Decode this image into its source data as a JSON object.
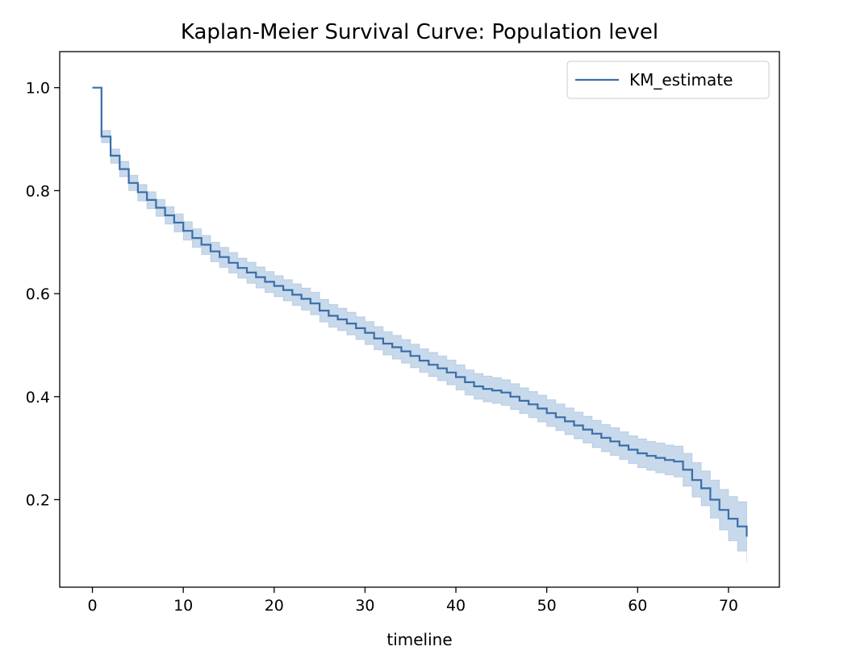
{
  "chart_data": {
    "type": "line",
    "title": "Kaplan-Meier Survival Curve: Population level",
    "xlabel": "timeline",
    "ylabel": "",
    "xlim": [
      -3.6,
      75.6
    ],
    "ylim": [
      0.03,
      1.07
    ],
    "x_ticks": [
      0,
      10,
      20,
      30,
      40,
      50,
      60,
      70
    ],
    "x_tick_labels": [
      "0",
      "10",
      "20",
      "30",
      "40",
      "50",
      "60",
      "70"
    ],
    "y_ticks": [
      0.2,
      0.4,
      0.6,
      0.8,
      1.0
    ],
    "y_tick_labels": [
      "0.2",
      "0.4",
      "0.6",
      "0.8",
      "1.0"
    ],
    "grid": false,
    "legend_position": "top-right",
    "series": [
      {
        "name": "KM_estimate",
        "color": "#3a6ea8",
        "band_color": "#a9c4e0",
        "x": [
          0,
          1,
          2,
          3,
          4,
          5,
          6,
          7,
          8,
          9,
          10,
          11,
          12,
          13,
          14,
          15,
          16,
          17,
          18,
          19,
          20,
          21,
          22,
          23,
          24,
          25,
          26,
          27,
          28,
          29,
          30,
          31,
          32,
          33,
          34,
          35,
          36,
          37,
          38,
          39,
          40,
          41,
          42,
          43,
          44,
          45,
          46,
          47,
          48,
          49,
          50,
          51,
          52,
          53,
          54,
          55,
          56,
          57,
          58,
          59,
          60,
          61,
          62,
          63,
          64,
          65,
          66,
          67,
          68,
          69,
          70,
          71,
          72
        ],
        "y": [
          1.0,
          0.905,
          0.868,
          0.842,
          0.815,
          0.797,
          0.782,
          0.767,
          0.752,
          0.738,
          0.722,
          0.708,
          0.695,
          0.682,
          0.671,
          0.66,
          0.65,
          0.641,
          0.632,
          0.623,
          0.615,
          0.607,
          0.598,
          0.59,
          0.581,
          0.567,
          0.557,
          0.55,
          0.542,
          0.533,
          0.524,
          0.513,
          0.503,
          0.496,
          0.488,
          0.479,
          0.47,
          0.462,
          0.455,
          0.447,
          0.438,
          0.428,
          0.42,
          0.415,
          0.412,
          0.408,
          0.4,
          0.392,
          0.385,
          0.377,
          0.368,
          0.36,
          0.352,
          0.344,
          0.336,
          0.328,
          0.32,
          0.313,
          0.305,
          0.297,
          0.29,
          0.285,
          0.281,
          0.277,
          0.274,
          0.258,
          0.238,
          0.222,
          0.2,
          0.18,
          0.163,
          0.148,
          0.128
        ],
        "ci_lower": [
          1.0,
          0.893,
          0.853,
          0.827,
          0.8,
          0.78,
          0.765,
          0.75,
          0.735,
          0.72,
          0.704,
          0.69,
          0.676,
          0.662,
          0.651,
          0.64,
          0.63,
          0.62,
          0.611,
          0.602,
          0.594,
          0.586,
          0.577,
          0.568,
          0.559,
          0.545,
          0.535,
          0.528,
          0.52,
          0.511,
          0.501,
          0.491,
          0.481,
          0.473,
          0.465,
          0.456,
          0.447,
          0.439,
          0.431,
          0.423,
          0.413,
          0.403,
          0.395,
          0.39,
          0.387,
          0.383,
          0.375,
          0.367,
          0.359,
          0.351,
          0.342,
          0.334,
          0.326,
          0.318,
          0.31,
          0.301,
          0.293,
          0.286,
          0.278,
          0.27,
          0.262,
          0.257,
          0.252,
          0.248,
          0.244,
          0.226,
          0.205,
          0.188,
          0.164,
          0.141,
          0.12,
          0.1,
          0.078
        ],
        "ci_upper": [
          1.0,
          0.917,
          0.881,
          0.857,
          0.83,
          0.812,
          0.798,
          0.783,
          0.769,
          0.755,
          0.74,
          0.726,
          0.713,
          0.7,
          0.69,
          0.68,
          0.669,
          0.661,
          0.652,
          0.643,
          0.635,
          0.627,
          0.619,
          0.611,
          0.603,
          0.589,
          0.579,
          0.572,
          0.564,
          0.555,
          0.546,
          0.536,
          0.526,
          0.519,
          0.511,
          0.502,
          0.493,
          0.486,
          0.479,
          0.471,
          0.462,
          0.452,
          0.445,
          0.44,
          0.437,
          0.433,
          0.425,
          0.417,
          0.41,
          0.403,
          0.394,
          0.386,
          0.378,
          0.37,
          0.362,
          0.354,
          0.346,
          0.34,
          0.332,
          0.324,
          0.318,
          0.313,
          0.31,
          0.306,
          0.304,
          0.29,
          0.272,
          0.256,
          0.238,
          0.22,
          0.206,
          0.196,
          0.19
        ]
      }
    ]
  }
}
